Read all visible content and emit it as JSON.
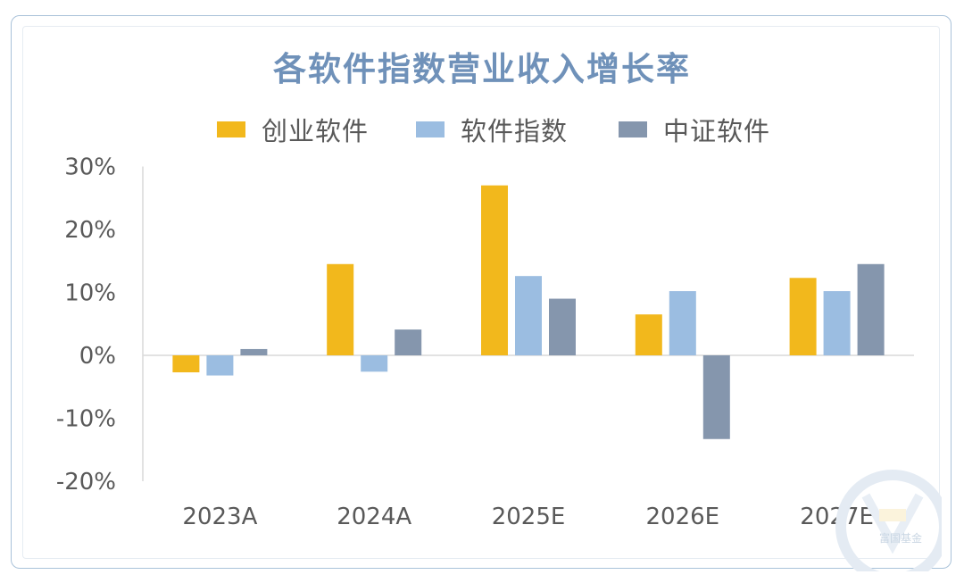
{
  "title": "各软件指数营业收入增长率",
  "watermark_text": "富国基金",
  "legend": [
    {
      "label": "创业软件",
      "color": "#f2b81c"
    },
    {
      "label": "软件指数",
      "color": "#9bbde1"
    },
    {
      "label": "中证软件",
      "color": "#8596ad"
    }
  ],
  "chart_data": {
    "type": "bar",
    "title": "各软件指数营业收入增长率",
    "categories": [
      "2023A",
      "2024A",
      "2025E",
      "2026E",
      "2027E"
    ],
    "series": [
      {
        "name": "创业软件",
        "color": "#f2b81c",
        "values": [
          -2.7,
          14.5,
          27.0,
          6.5,
          12.3
        ]
      },
      {
        "name": "软件指数",
        "color": "#9bbde1",
        "values": [
          -3.2,
          -2.6,
          12.6,
          10.2,
          10.2
        ]
      },
      {
        "name": "中证软件",
        "color": "#8596ad",
        "values": [
          1.0,
          4.1,
          9.0,
          -13.3,
          14.5
        ]
      }
    ],
    "ylim": [
      -20,
      30
    ],
    "yticks": [
      "30%",
      "20%",
      "10%",
      "0%",
      "-10%",
      "-20%"
    ],
    "ytick_values": [
      30,
      20,
      10,
      0,
      -10,
      -20
    ],
    "grid": false,
    "legend_position": "top"
  }
}
